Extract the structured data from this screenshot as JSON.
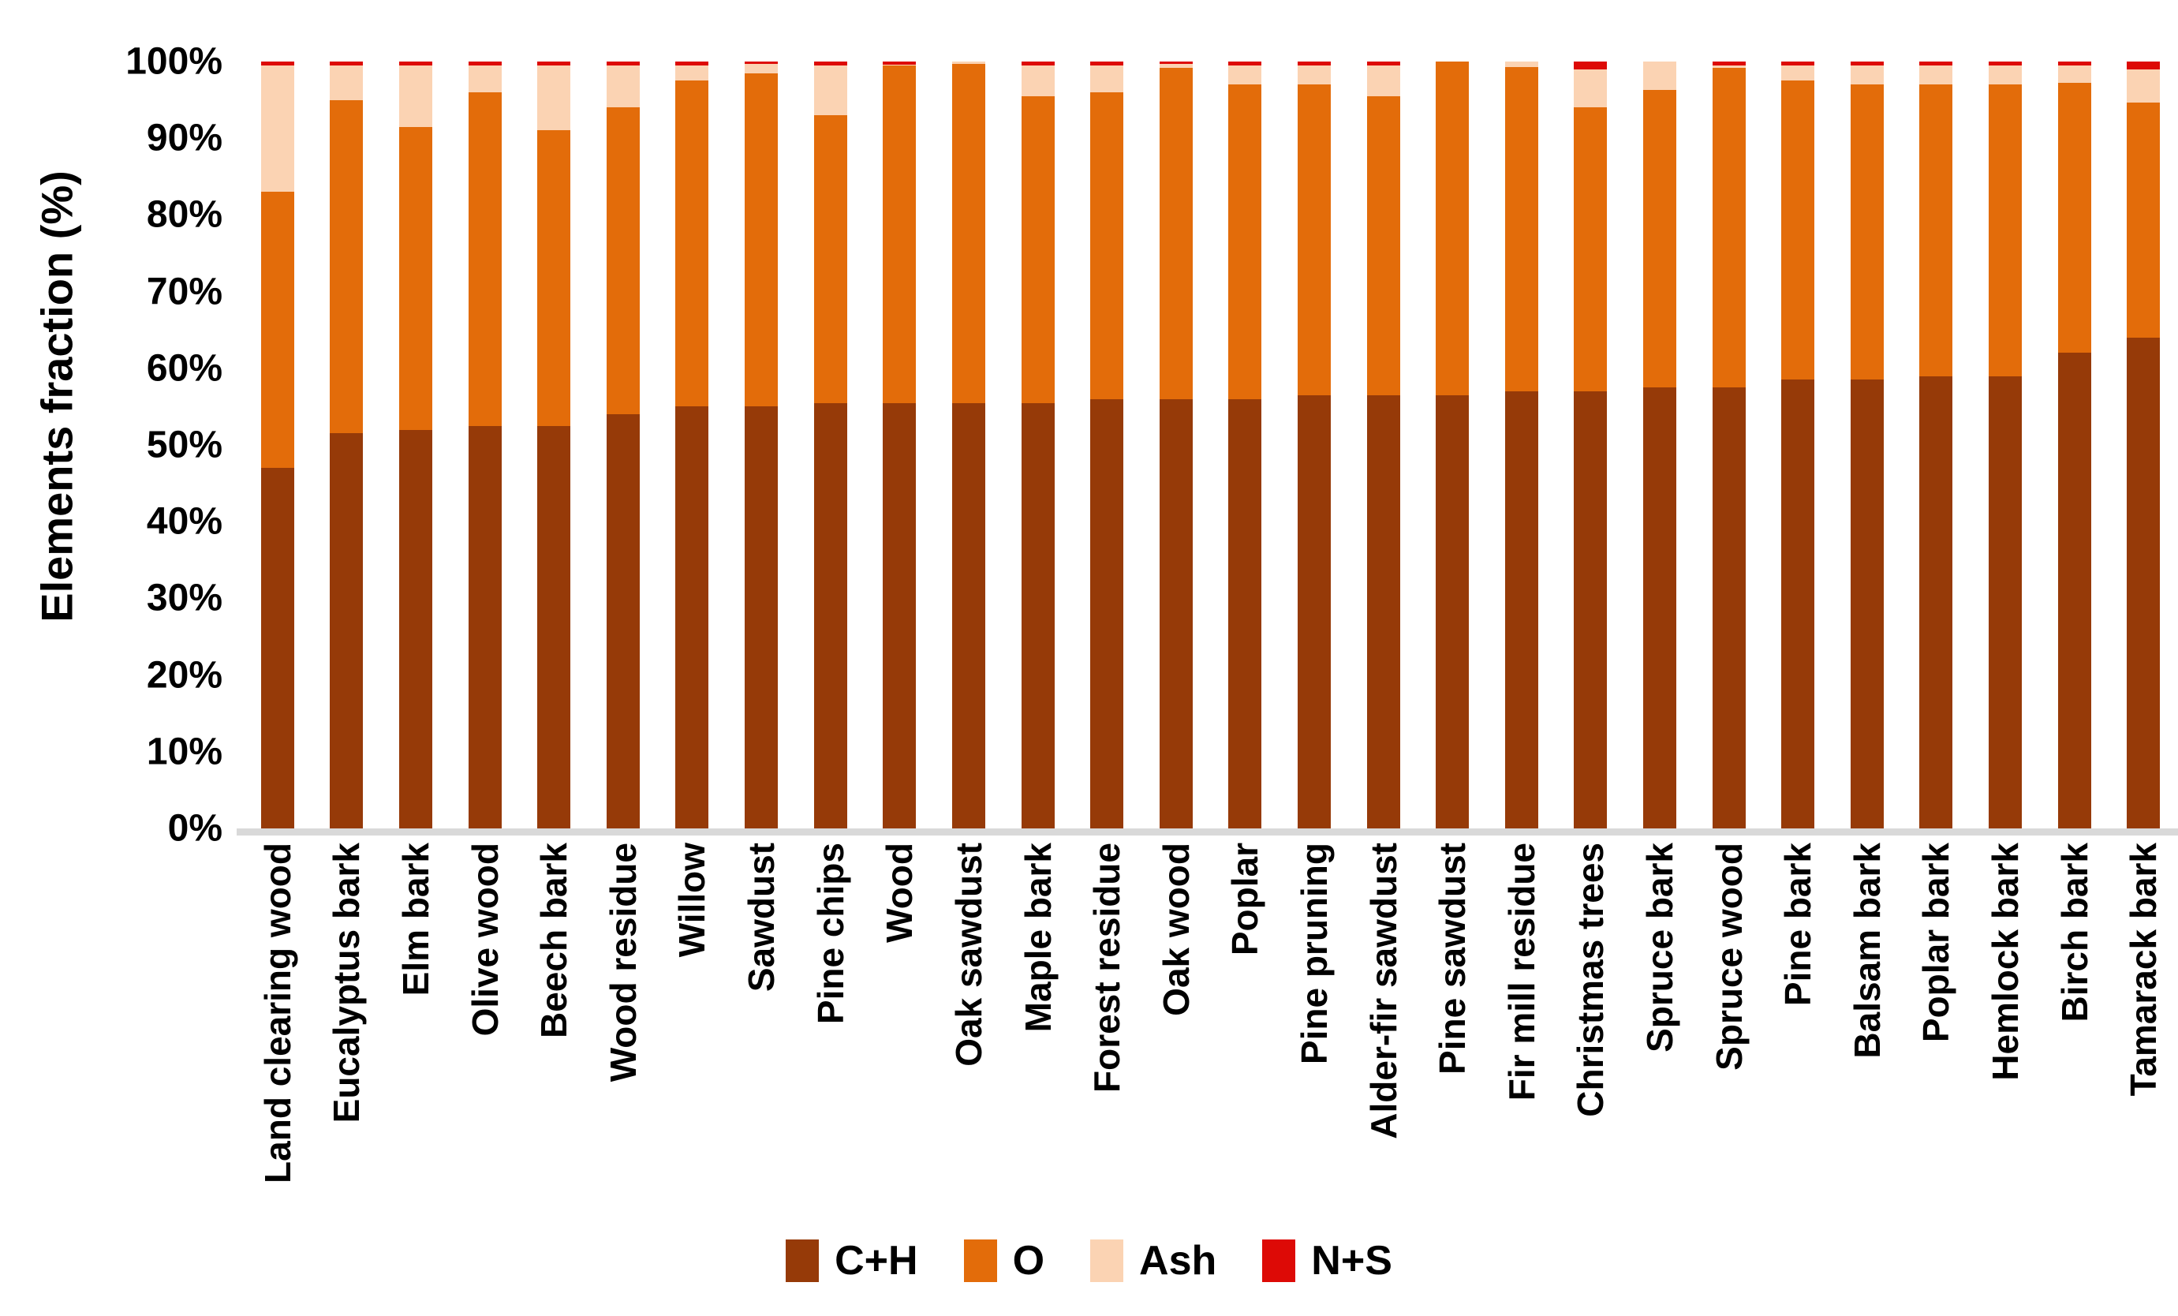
{
  "chart_data": {
    "type": "bar",
    "stacked": true,
    "orientation": "vertical",
    "title": "",
    "xlabel": "",
    "ylabel": "Elements fraction (%)",
    "ylim": [
      0,
      100
    ],
    "ytick_step": 10,
    "ytick_labels": [
      "0%",
      "10%",
      "20%",
      "30%",
      "40%",
      "50%",
      "60%",
      "70%",
      "80%",
      "90%",
      "100%"
    ],
    "grid": false,
    "legend_position": "bottom",
    "axis_line_color": "#D9D9D9",
    "categories": [
      "Land clearing wood",
      "Eucalyptus bark",
      "Elm bark",
      "Olive wood",
      "Beech bark",
      "Wood residue",
      "Willow",
      "Sawdust",
      "Pine chips",
      "Wood",
      "Oak sawdust",
      "Maple bark",
      "Forest residue",
      "Oak wood",
      "Poplar",
      "Pine pruning",
      "Alder-fir sawdust",
      "Pine sawdust",
      "Fir mill residue",
      "Christmas trees",
      "Spruce bark",
      "Spruce wood",
      "Pine bark",
      "Balsam bark",
      "Poplar bark",
      "Hemlock bark",
      "Birch bark",
      "Tamarack bark"
    ],
    "series": [
      {
        "name": "C+H",
        "color": "#963A08",
        "values": [
          47,
          51.5,
          52,
          52.5,
          52.5,
          54,
          55,
          55,
          55.5,
          55.5,
          55.5,
          55.5,
          56,
          56,
          56,
          56.5,
          56.5,
          56.5,
          57,
          57,
          57.5,
          57.5,
          58.5,
          58.5,
          59,
          59,
          62,
          64
        ]
      },
      {
        "name": "O",
        "color": "#E36C0A",
        "values": [
          36,
          43.5,
          39.5,
          43.5,
          38.5,
          40,
          42.5,
          43.5,
          37.5,
          44,
          44.2,
          40,
          40,
          43.2,
          41,
          40.5,
          39,
          43.5,
          42.3,
          37,
          38.8,
          41.7,
          39,
          38.5,
          38,
          38,
          35.2,
          30.7
        ]
      },
      {
        "name": "Ash",
        "color": "#FBD3B3",
        "values": [
          16.5,
          4.5,
          8,
          3.5,
          8.5,
          5.5,
          2,
          1.2,
          6.5,
          0.1,
          0.3,
          4,
          3.5,
          0.5,
          2.5,
          2.5,
          4,
          0,
          0.7,
          5,
          3.7,
          0.3,
          2,
          2.5,
          2.5,
          2.5,
          2.3,
          4.3
        ]
      },
      {
        "name": "N+S",
        "color": "#DD0A06",
        "values": [
          0.5,
          0.5,
          0.5,
          0.5,
          0.5,
          0.5,
          0.5,
          0.3,
          0.5,
          0.4,
          0,
          0.5,
          0.5,
          0.3,
          0.5,
          0.5,
          0.5,
          0,
          0,
          1,
          0,
          0.5,
          0.5,
          0.5,
          0.5,
          0.5,
          0.5,
          1
        ]
      }
    ]
  }
}
